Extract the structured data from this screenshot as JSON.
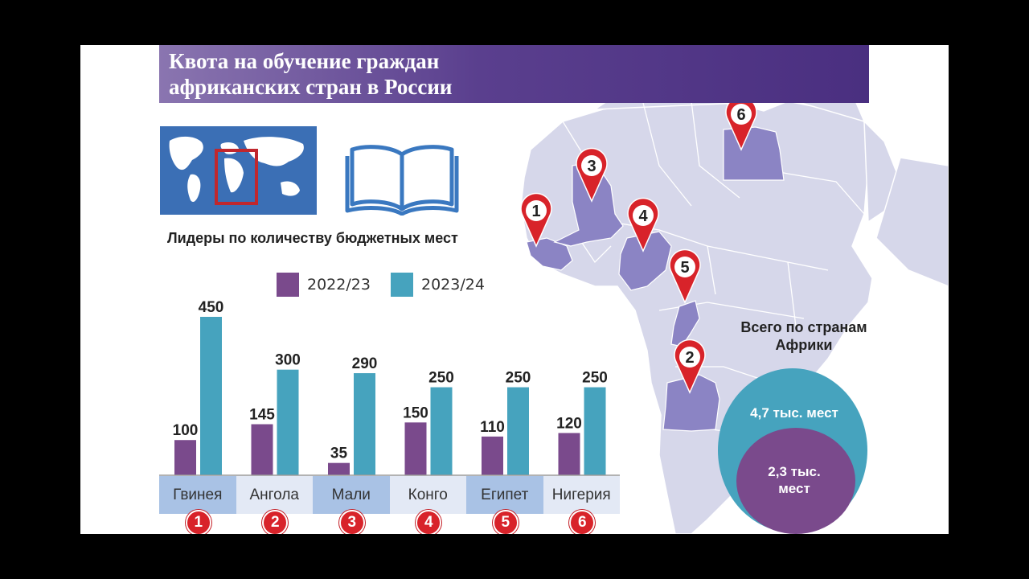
{
  "title": "Квота на обучение граждан африканских стран в России",
  "subtitle": "Лидеры по количеству бюджетных мест",
  "colors": {
    "series_2022": "#7a4a8c",
    "series_2023": "#46a3be",
    "title_bg": "#4a2f80",
    "badge": "#d8232a",
    "map_land": "#d6d7ea",
    "map_highlight": "#8b84c4"
  },
  "chart_data": {
    "type": "bar",
    "categories": [
      "Гвинея",
      "Ангола",
      "Мали",
      "Конго",
      "Египет",
      "Нигерия"
    ],
    "ranks": [
      "1",
      "2",
      "3",
      "4",
      "5",
      "6"
    ],
    "series": [
      {
        "name": "2022/23",
        "values": [
          100,
          145,
          35,
          150,
          110,
          120
        ]
      },
      {
        "name": "2023/24",
        "values": [
          450,
          300,
          290,
          250,
          250,
          250
        ]
      }
    ],
    "ylim": [
      0,
      450
    ]
  },
  "totals": {
    "label": "Всего по странам Африки",
    "total_2023": "4,7 тыс. мест",
    "total_2022": "2,3 тыс. мест"
  },
  "map_markers": [
    "1",
    "2",
    "3",
    "4",
    "5",
    "6"
  ]
}
